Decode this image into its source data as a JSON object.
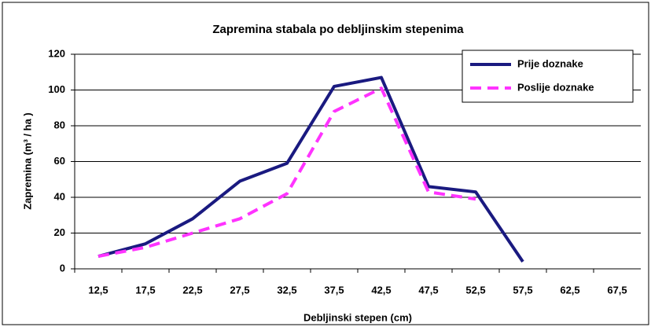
{
  "chart_data": {
    "type": "line",
    "title": "Zapremina stabala po debljinskim stepenima",
    "x_label": "Debljinski stepen (cm)",
    "y_label": "Zapremina (m³ / ha )",
    "categories": [
      "12,5",
      "17,5",
      "22,5",
      "27,5",
      "32,5",
      "37,5",
      "42,5",
      "47,5",
      "52,5",
      "57,5",
      "62,5",
      "67,5"
    ],
    "series": [
      {
        "name": "Prije doznake",
        "color": "#1a1a80",
        "style": "solid",
        "values": [
          7,
          14,
          28,
          49,
          59,
          102,
          107,
          46,
          43,
          4,
          null,
          null
        ]
      },
      {
        "name": "Poslije doznake",
        "color": "#ff33ff",
        "style": "dashed",
        "values": [
          7,
          12,
          20,
          28,
          42,
          88,
          101,
          43,
          39,
          null,
          null,
          null
        ]
      }
    ],
    "ylim": [
      0,
      120
    ],
    "yticks": [
      0,
      20,
      40,
      60,
      80,
      100,
      120
    ],
    "grid": true,
    "legend": "upper right"
  }
}
